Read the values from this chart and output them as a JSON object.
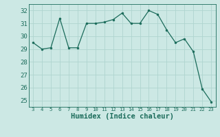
{
  "x": [
    3,
    4,
    5,
    6,
    7,
    8,
    9,
    10,
    11,
    12,
    13,
    14,
    15,
    16,
    17,
    18,
    19,
    20,
    21,
    22,
    23
  ],
  "y": [
    29.5,
    29.0,
    29.1,
    31.4,
    29.1,
    29.1,
    31.0,
    31.0,
    31.1,
    31.3,
    31.8,
    31.0,
    31.0,
    32.0,
    31.7,
    30.5,
    29.5,
    29.8,
    28.8,
    25.9,
    24.9
  ],
  "line_color": "#1a6b5a",
  "marker_color": "#1a6b5a",
  "bg_color": "#cce8e4",
  "grid_color": "#afd4cf",
  "xlabel": "Humidex (Indice chaleur)",
  "xlabel_fontsize": 7.5,
  "tick_fontsize": 6.5,
  "ylim": [
    24.5,
    32.5
  ],
  "xlim": [
    2.5,
    23.5
  ],
  "yticks": [
    25,
    26,
    27,
    28,
    29,
    30,
    31,
    32
  ],
  "xticks": [
    3,
    4,
    5,
    6,
    7,
    8,
    9,
    10,
    11,
    12,
    13,
    14,
    15,
    16,
    17,
    18,
    19,
    20,
    21,
    22,
    23
  ]
}
